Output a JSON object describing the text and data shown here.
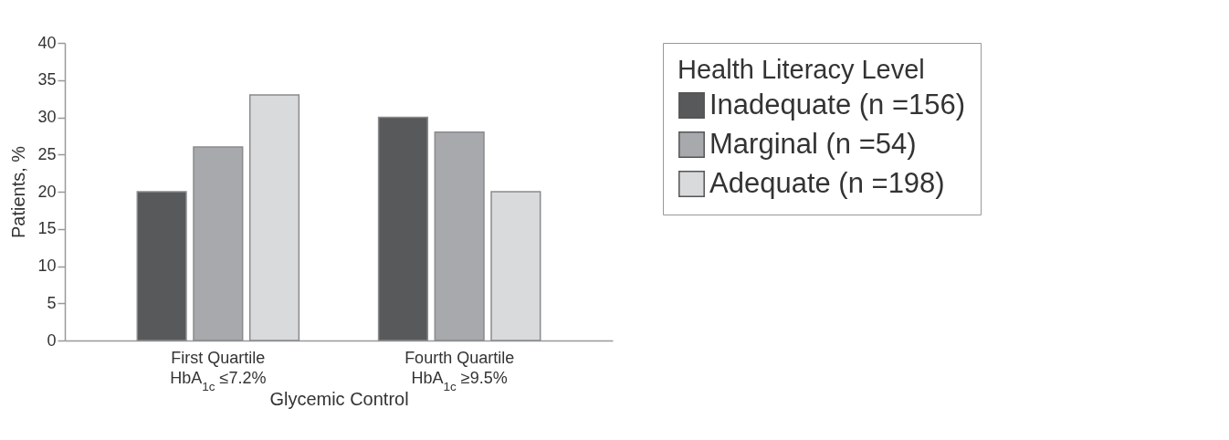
{
  "chart_data": {
    "type": "bar",
    "xlabel": "Glycemic Control",
    "ylabel": "Patients, %",
    "legend_title": "Health Literacy Level",
    "categories": [
      "First Quartile\nHbA$_{1c}$ ≤7.2%",
      "Fourth Quartile\nHbA$_{1c}$ ≥9.5%"
    ],
    "series": [
      {
        "name": "Inadequate (n =156)",
        "color": "#58595b",
        "values": [
          20,
          30
        ]
      },
      {
        "name": "Marginal (n =54)",
        "color": "#a7a9ac",
        "values": [
          26,
          28
        ]
      },
      {
        "name": "Adequate (n =198)",
        "color": "#d9dadb",
        "values": [
          33,
          20
        ]
      }
    ],
    "ylim": [
      0,
      40
    ],
    "yticks": [
      0,
      5,
      10,
      15,
      20,
      25,
      30,
      35,
      40
    ],
    "legend": "right"
  }
}
